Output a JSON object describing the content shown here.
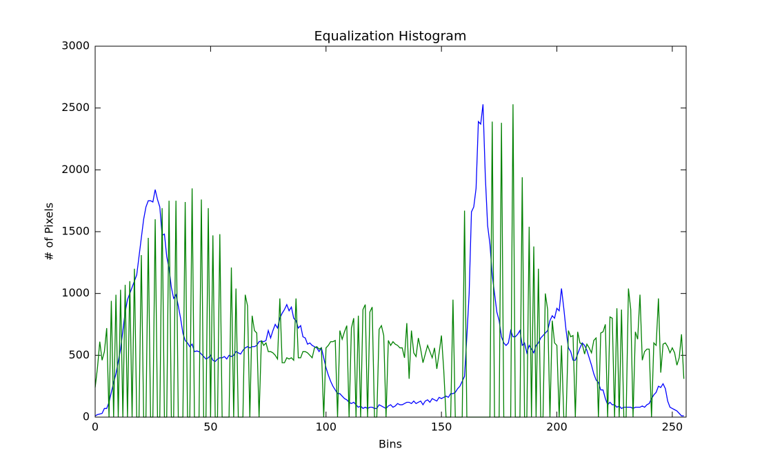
{
  "chart_data": {
    "type": "line",
    "title": "Equalization Histogram",
    "x_label": "Bins",
    "y_label": "# of Pixels",
    "x": [
      0,
      1,
      2,
      3,
      4,
      5,
      6,
      7,
      8,
      9,
      10,
      11,
      12,
      13,
      14,
      15,
      16,
      17,
      18,
      19,
      20,
      21,
      22,
      23,
      24,
      25,
      26,
      27,
      28,
      29,
      30,
      31,
      32,
      33,
      34,
      35,
      36,
      37,
      38,
      39,
      40,
      41,
      42,
      43,
      44,
      45,
      46,
      47,
      48,
      49,
      50,
      51,
      52,
      53,
      54,
      55,
      56,
      57,
      58,
      59,
      60,
      61,
      62,
      63,
      64,
      65,
      66,
      67,
      68,
      69,
      70,
      71,
      72,
      73,
      74,
      75,
      76,
      77,
      78,
      79,
      80,
      81,
      82,
      83,
      84,
      85,
      86,
      87,
      88,
      89,
      90,
      91,
      92,
      93,
      94,
      95,
      96,
      97,
      98,
      99,
      100,
      101,
      102,
      103,
      104,
      105,
      106,
      107,
      108,
      109,
      110,
      111,
      112,
      113,
      114,
      115,
      116,
      117,
      118,
      119,
      120,
      121,
      122,
      123,
      124,
      125,
      126,
      127,
      128,
      129,
      130,
      131,
      132,
      133,
      134,
      135,
      136,
      137,
      138,
      139,
      140,
      141,
      142,
      143,
      144,
      145,
      146,
      147,
      148,
      149,
      150,
      151,
      152,
      153,
      154,
      155,
      156,
      157,
      158,
      159,
      160,
      161,
      162,
      163,
      164,
      165,
      166,
      167,
      168,
      169,
      170,
      171,
      172,
      173,
      174,
      175,
      176,
      177,
      178,
      179,
      180,
      181,
      182,
      183,
      184,
      185,
      186,
      187,
      188,
      189,
      190,
      191,
      192,
      193,
      194,
      195,
      196,
      197,
      198,
      199,
      200,
      201,
      202,
      203,
      204,
      205,
      206,
      207,
      208,
      209,
      210,
      211,
      212,
      213,
      214,
      215,
      216,
      217,
      218,
      219,
      220,
      221,
      222,
      223,
      224,
      225,
      226,
      227,
      228,
      229,
      230,
      231,
      232,
      233,
      234,
      235,
      236,
      237,
      238,
      239,
      240,
      241,
      242,
      243,
      244,
      245,
      246,
      247,
      248,
      249,
      250,
      251,
      252,
      253,
      254,
      255
    ],
    "series": [
      {
        "color": "#0000ff",
        "values": [
          10,
          20,
          25,
          30,
          70,
          70,
          120,
          200,
          280,
          350,
          450,
          550,
          700,
          850,
          950,
          1000,
          1050,
          1100,
          1150,
          1300,
          1450,
          1600,
          1700,
          1750,
          1750,
          1740,
          1840,
          1760,
          1700,
          1470,
          1480,
          1300,
          1200,
          1050,
          960,
          990,
          900,
          800,
          680,
          620,
          600,
          570,
          590,
          530,
          535,
          530,
          510,
          490,
          470,
          480,
          500,
          460,
          450,
          470,
          480,
          480,
          490,
          470,
          500,
          490,
          500,
          530,
          520,
          510,
          540,
          560,
          570,
          560,
          570,
          570,
          580,
          610,
          615,
          610,
          620,
          700,
          640,
          700,
          750,
          720,
          800,
          840,
          870,
          910,
          860,
          890,
          800,
          780,
          720,
          740,
          650,
          640,
          590,
          600,
          580,
          570,
          560,
          530,
          560,
          480,
          400,
          340,
          290,
          250,
          220,
          190,
          190,
          170,
          150,
          140,
          120,
          110,
          120,
          100,
          80,
          90,
          70,
          80,
          70,
          80,
          80,
          70,
          70,
          100,
          90,
          80,
          70,
          90,
          100,
          80,
          90,
          110,
          100,
          100,
          110,
          120,
          120,
          110,
          130,
          110,
          120,
          130,
          100,
          130,
          140,
          120,
          150,
          140,
          130,
          160,
          150,
          160,
          170,
          160,
          190,
          190,
          200,
          230,
          250,
          290,
          330,
          650,
          1000,
          1660,
          1700,
          1850,
          2390,
          2370,
          2530,
          1950,
          1550,
          1400,
          1150,
          1000,
          850,
          780,
          650,
          600,
          580,
          600,
          700,
          650,
          650,
          670,
          700,
          580,
          600,
          520,
          580,
          550,
          520,
          580,
          600,
          640,
          660,
          680,
          700,
          780,
          820,
          800,
          880,
          860,
          1040,
          880,
          700,
          560,
          530,
          460,
          460,
          510,
          560,
          600,
          580,
          540,
          480,
          420,
          350,
          300,
          280,
          220,
          220,
          150,
          100,
          120,
          100,
          100,
          80,
          90,
          70,
          80,
          80,
          80,
          80,
          70,
          80,
          80,
          80,
          90,
          80,
          100,
          110,
          150,
          180,
          200,
          250,
          240,
          270,
          230,
          130,
          80,
          70,
          60,
          50,
          30,
          10,
          10
        ]
      },
      {
        "color": "#008000",
        "values": [
          240,
          400,
          610,
          460,
          530,
          720,
          0,
          940,
          0,
          990,
          0,
          1030,
          0,
          1070,
          0,
          1100,
          0,
          1200,
          0,
          0,
          1310,
          0,
          0,
          1450,
          0,
          0,
          1600,
          0,
          0,
          1690,
          0,
          0,
          1750,
          0,
          0,
          1750,
          0,
          0,
          0,
          1740,
          0,
          0,
          1850,
          0,
          0,
          0,
          1760,
          0,
          0,
          1690,
          0,
          1470,
          0,
          0,
          1480,
          0,
          0,
          0,
          0,
          1210,
          0,
          1040,
          0,
          0,
          0,
          990,
          900,
          0,
          820,
          700,
          680,
          0,
          620,
          580,
          600,
          530,
          530,
          520,
          500,
          470,
          960,
          440,
          440,
          480,
          470,
          480,
          460,
          960,
          480,
          480,
          530,
          530,
          520,
          500,
          480,
          560,
          570,
          550,
          560,
          0,
          560,
          580,
          610,
          610,
          620,
          0,
          700,
          630,
          690,
          740,
          0,
          720,
          800,
          0,
          820,
          0,
          870,
          910,
          0,
          850,
          890,
          0,
          0,
          710,
          740,
          660,
          0,
          620,
          580,
          610,
          590,
          580,
          560,
          560,
          480,
          760,
          310,
          700,
          520,
          490,
          640,
          550,
          440,
          510,
          580,
          530,
          480,
          560,
          390,
          520,
          660,
          380,
          0,
          0,
          0,
          950,
          0,
          0,
          0,
          0,
          1670,
          0,
          0,
          0,
          0,
          0,
          0,
          0,
          0,
          0,
          0,
          0,
          2390,
          0,
          0,
          0,
          2380,
          0,
          0,
          0,
          0,
          2530,
          0,
          0,
          0,
          1940,
          0,
          0,
          1540,
          0,
          1380,
          0,
          1200,
          0,
          0,
          1000,
          870,
          0,
          780,
          600,
          580,
          0,
          580,
          0,
          0,
          700,
          650,
          660,
          0,
          690,
          600,
          590,
          510,
          590,
          560,
          520,
          620,
          640,
          0,
          680,
          690,
          750,
          0,
          810,
          800,
          0,
          880,
          0,
          870,
          0,
          0,
          1040,
          870,
          0,
          690,
          630,
          990,
          460,
          530,
          550,
          550,
          0,
          600,
          580,
          960,
          360,
          590,
          600,
          570,
          520,
          560,
          520,
          420,
          480,
          670,
          310
        ]
      }
    ],
    "xlim": [
      0,
      256
    ],
    "ylim": [
      0,
      3000
    ],
    "xticks": [
      0,
      50,
      100,
      150,
      200,
      250
    ],
    "yticks": [
      0,
      500,
      1000,
      1500,
      2000,
      2500,
      3000
    ],
    "grid": false
  }
}
